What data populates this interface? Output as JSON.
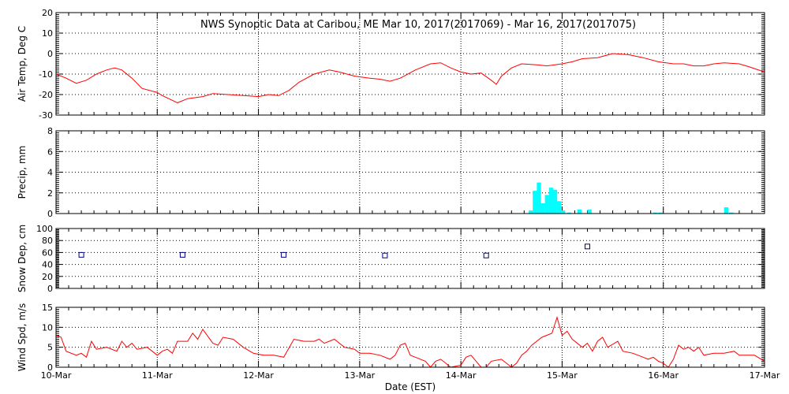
{
  "chart_data": {
    "type": "line",
    "title": "NWS Synoptic Data at Caribou, ME   Mar 10, 2017(2017069) - Mar 16, 2017(2017075)",
    "xlabel": "Date (EST)",
    "x_range_days": [
      0,
      7
    ],
    "x_ticks": [
      "10-Mar",
      "11-Mar",
      "12-Mar",
      "13-Mar",
      "14-Mar",
      "15-Mar",
      "16-Mar",
      "17-Mar"
    ],
    "grid": true,
    "colors": {
      "temp": "#ff0000",
      "precip": "#00ffff",
      "snow": "#000080",
      "wind": "#ff0000",
      "grid": "#000000"
    },
    "panels": [
      {
        "id": "temp",
        "ylabel": "Air Temp, Deg C",
        "ylim": [
          -30,
          20
        ],
        "yticks": [
          20,
          10,
          0,
          -10,
          -20,
          -30
        ],
        "series": {
          "type": "line",
          "points": [
            [
              0,
              -10
            ],
            [
              0.1,
              -12
            ],
            [
              0.2,
              -14.5
            ],
            [
              0.3,
              -13
            ],
            [
              0.4,
              -10
            ],
            [
              0.5,
              -8
            ],
            [
              0.58,
              -7
            ],
            [
              0.65,
              -8
            ],
            [
              0.75,
              -12
            ],
            [
              0.85,
              -17
            ],
            [
              1,
              -19
            ],
            [
              1.05,
              -20.5
            ],
            [
              1.2,
              -24
            ],
            [
              1.3,
              -22
            ],
            [
              1.45,
              -21
            ],
            [
              1.55,
              -19.5
            ],
            [
              1.7,
              -20
            ],
            [
              1.85,
              -20.5
            ],
            [
              2.0,
              -21
            ],
            [
              2.1,
              -20
            ],
            [
              2.2,
              -20.5
            ],
            [
              2.3,
              -18
            ],
            [
              2.4,
              -14
            ],
            [
              2.55,
              -10
            ],
            [
              2.7,
              -8
            ],
            [
              2.8,
              -9
            ],
            [
              2.95,
              -11
            ],
            [
              3.1,
              -12
            ],
            [
              3.2,
              -12.5
            ],
            [
              3.3,
              -13.5
            ],
            [
              3.4,
              -12
            ],
            [
              3.55,
              -8
            ],
            [
              3.7,
              -5
            ],
            [
              3.8,
              -4.5
            ],
            [
              3.9,
              -7
            ],
            [
              4.0,
              -9
            ],
            [
              4.1,
              -10
            ],
            [
              4.2,
              -9.5
            ],
            [
              4.3,
              -13
            ],
            [
              4.35,
              -15
            ],
            [
              4.4,
              -11
            ],
            [
              4.5,
              -7
            ],
            [
              4.6,
              -5
            ],
            [
              4.75,
              -5.5
            ],
            [
              4.85,
              -6
            ],
            [
              5.0,
              -5
            ],
            [
              5.1,
              -4
            ],
            [
              5.2,
              -2.5
            ],
            [
              5.35,
              -2
            ],
            [
              5.5,
              0
            ],
            [
              5.65,
              -0.5
            ],
            [
              5.8,
              -2
            ],
            [
              5.95,
              -4
            ],
            [
              6.1,
              -5
            ],
            [
              6.2,
              -5
            ],
            [
              6.3,
              -6
            ],
            [
              6.4,
              -6
            ],
            [
              6.5,
              -5
            ],
            [
              6.6,
              -4.5
            ],
            [
              6.75,
              -5
            ],
            [
              6.85,
              -6.5
            ],
            [
              7.0,
              -9
            ]
          ]
        }
      },
      {
        "id": "precip",
        "ylabel": "Precip, mm",
        "ylim": [
          0,
          8
        ],
        "yticks": [
          8,
          6,
          4,
          2,
          0
        ],
        "series": {
          "type": "bar",
          "bin_width": 0.04167,
          "points": [
            [
              4.67,
              0.3
            ],
            [
              4.71,
              2.2
            ],
            [
              4.75,
              3.0
            ],
            [
              4.79,
              1.0
            ],
            [
              4.83,
              1.8
            ],
            [
              4.87,
              2.5
            ],
            [
              4.91,
              2.3
            ],
            [
              4.95,
              1.2
            ],
            [
              4.99,
              0.3
            ],
            [
              5.05,
              0.1
            ],
            [
              5.15,
              0.4
            ],
            [
              5.25,
              0.4
            ],
            [
              5.9,
              0.1
            ],
            [
              5.95,
              0.1
            ],
            [
              6.6,
              0.6
            ],
            [
              6.65,
              0.1
            ]
          ]
        }
      },
      {
        "id": "snow",
        "ylabel": "Snow Dep, cm",
        "ylim": [
          0,
          100
        ],
        "yticks": [
          100,
          80,
          60,
          40,
          20,
          0
        ],
        "series": {
          "type": "scatter",
          "points": [
            [
              0.25,
              56
            ],
            [
              1.25,
              56
            ],
            [
              2.25,
              56
            ],
            [
              3.25,
              55
            ],
            [
              4.25,
              55
            ],
            [
              5.25,
              70
            ]
          ]
        }
      },
      {
        "id": "wind",
        "ylabel": "Wind Spd, m/s",
        "ylim": [
          0,
          15
        ],
        "yticks": [
          15,
          10,
          5,
          0
        ],
        "series": {
          "type": "line",
          "points": [
            [
              0,
              8
            ],
            [
              0.05,
              7.5
            ],
            [
              0.1,
              4
            ],
            [
              0.2,
              3
            ],
            [
              0.25,
              3.5
            ],
            [
              0.3,
              2.5
            ],
            [
              0.35,
              6.5
            ],
            [
              0.4,
              4.5
            ],
            [
              0.5,
              5
            ],
            [
              0.6,
              4
            ],
            [
              0.65,
              6.5
            ],
            [
              0.7,
              5
            ],
            [
              0.75,
              6
            ],
            [
              0.8,
              4.5
            ],
            [
              0.9,
              5
            ],
            [
              0.95,
              4
            ],
            [
              1.0,
              3
            ],
            [
              1.05,
              4
            ],
            [
              1.1,
              4.5
            ],
            [
              1.15,
              3.5
            ],
            [
              1.2,
              6.5
            ],
            [
              1.3,
              6.5
            ],
            [
              1.35,
              8.5
            ],
            [
              1.4,
              7
            ],
            [
              1.45,
              9.5
            ],
            [
              1.55,
              6
            ],
            [
              1.6,
              5.5
            ],
            [
              1.65,
              7.5
            ],
            [
              1.75,
              7
            ],
            [
              1.85,
              5
            ],
            [
              1.95,
              3.5
            ],
            [
              2.05,
              3
            ],
            [
              2.15,
              3
            ],
            [
              2.25,
              2.5
            ],
            [
              2.35,
              7
            ],
            [
              2.45,
              6.5
            ],
            [
              2.55,
              6.5
            ],
            [
              2.6,
              7
            ],
            [
              2.65,
              6
            ],
            [
              2.75,
              7
            ],
            [
              2.85,
              5
            ],
            [
              2.95,
              4.5
            ],
            [
              3.0,
              3.5
            ],
            [
              3.1,
              3.5
            ],
            [
              3.2,
              3
            ],
            [
              3.3,
              2
            ],
            [
              3.35,
              3
            ],
            [
              3.4,
              5.5
            ],
            [
              3.45,
              6
            ],
            [
              3.5,
              3
            ],
            [
              3.55,
              2.5
            ],
            [
              3.65,
              1.5
            ],
            [
              3.7,
              0
            ],
            [
              3.75,
              1.5
            ],
            [
              3.8,
              2
            ],
            [
              3.85,
              1
            ],
            [
              3.9,
              0
            ],
            [
              4.0,
              0.5
            ],
            [
              4.05,
              2.5
            ],
            [
              4.1,
              3
            ],
            [
              4.15,
              1.5
            ],
            [
              4.2,
              0
            ],
            [
              4.25,
              0
            ],
            [
              4.3,
              1.5
            ],
            [
              4.4,
              2
            ],
            [
              4.5,
              0
            ],
            [
              4.55,
              1
            ],
            [
              4.6,
              3
            ],
            [
              4.65,
              4
            ],
            [
              4.7,
              5.5
            ],
            [
              4.8,
              7.5
            ],
            [
              4.9,
              8.5
            ],
            [
              4.95,
              12.5
            ],
            [
              5.0,
              8
            ],
            [
              5.05,
              9
            ],
            [
              5.1,
              7
            ],
            [
              5.2,
              5
            ],
            [
              5.25,
              6
            ],
            [
              5.3,
              4
            ],
            [
              5.35,
              6.5
            ],
            [
              5.4,
              7.5
            ],
            [
              5.45,
              5
            ],
            [
              5.55,
              6.5
            ],
            [
              5.6,
              4
            ],
            [
              5.7,
              3.5
            ],
            [
              5.8,
              2.5
            ],
            [
              5.85,
              2
            ],
            [
              5.9,
              2.5
            ],
            [
              5.95,
              1.5
            ],
            [
              6.0,
              1
            ],
            [
              6.05,
              0
            ],
            [
              6.1,
              2
            ],
            [
              6.15,
              5.5
            ],
            [
              6.2,
              4.5
            ],
            [
              6.25,
              5
            ],
            [
              6.3,
              4
            ],
            [
              6.35,
              5
            ],
            [
              6.4,
              3
            ],
            [
              6.5,
              3.5
            ],
            [
              6.6,
              3.5
            ],
            [
              6.7,
              4
            ],
            [
              6.75,
              3
            ],
            [
              6.85,
              3
            ],
            [
              6.9,
              3
            ],
            [
              7.0,
              1.5
            ]
          ]
        }
      }
    ]
  }
}
